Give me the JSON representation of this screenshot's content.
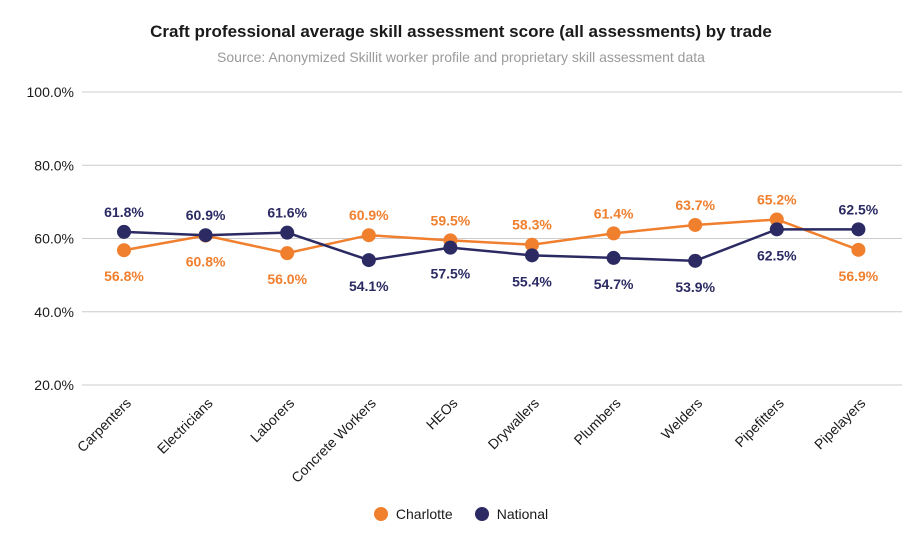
{
  "chart_data": {
    "type": "line",
    "title": "Craft professional average skill assessment score (all assessments) by trade",
    "subtitle": "Source: Anonymized Skillit worker profile and proprietary skill assessment data",
    "categories": [
      "Carpenters",
      "Electricians",
      "Laborers",
      "Concrete Workers",
      "HEOs",
      "Drywallers",
      "Plumbers",
      "Welders",
      "Pipefitters",
      "Pipelayers"
    ],
    "series": [
      {
        "name": "Charlotte",
        "color": "#F07F2E",
        "values": [
          56.8,
          60.8,
          56.0,
          60.9,
          59.5,
          58.3,
          61.4,
          63.7,
          65.2,
          56.9
        ],
        "labels": [
          "56.8%",
          "60.8%",
          "56.0%",
          "60.9%",
          "59.5%",
          "58.3%",
          "61.4%",
          "63.7%",
          "65.2%",
          "56.9%"
        ]
      },
      {
        "name": "National",
        "color": "#2B2A63",
        "values": [
          61.8,
          60.9,
          61.6,
          54.1,
          57.5,
          55.4,
          54.7,
          53.9,
          62.5,
          62.5
        ],
        "labels": [
          "61.8%",
          "60.9%",
          "61.6%",
          "54.1%",
          "57.5%",
          "55.4%",
          "54.7%",
          "53.9%",
          "62.5%",
          "62.5%"
        ]
      }
    ],
    "yticks": [
      "20.0%",
      "40.0%",
      "60.0%",
      "80.0%",
      "100.0%"
    ],
    "ylim": [
      20,
      100
    ],
    "grid": true,
    "legend_position": "bottom"
  }
}
